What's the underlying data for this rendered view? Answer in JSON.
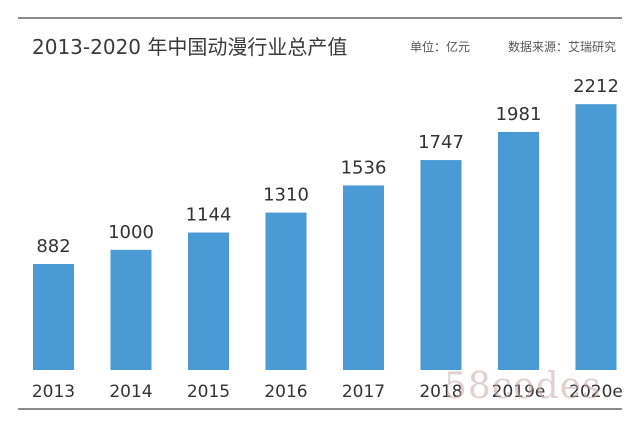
{
  "header": {
    "title": "2013-2020 年中国动漫行业总产值",
    "unit": "单位：亿元",
    "source": "数据来源：艾瑞研究"
  },
  "watermark": "58codes",
  "colors": {
    "bar": "#4a9ad6",
    "text": "#333333",
    "rule": "#8c8c8c"
  },
  "chart_data": {
    "type": "bar",
    "title": "2013-2020 年中国动漫行业总产值",
    "categories": [
      "2013",
      "2014",
      "2015",
      "2016",
      "2017",
      "2018",
      "2019e",
      "2020e"
    ],
    "values": [
      882,
      1000,
      1144,
      1310,
      1536,
      1747,
      1981,
      2212
    ],
    "xlabel": "",
    "ylabel": "",
    "ylim": [
      0,
      2330
    ],
    "grid": false,
    "legend": "none",
    "data_labels": true
  }
}
